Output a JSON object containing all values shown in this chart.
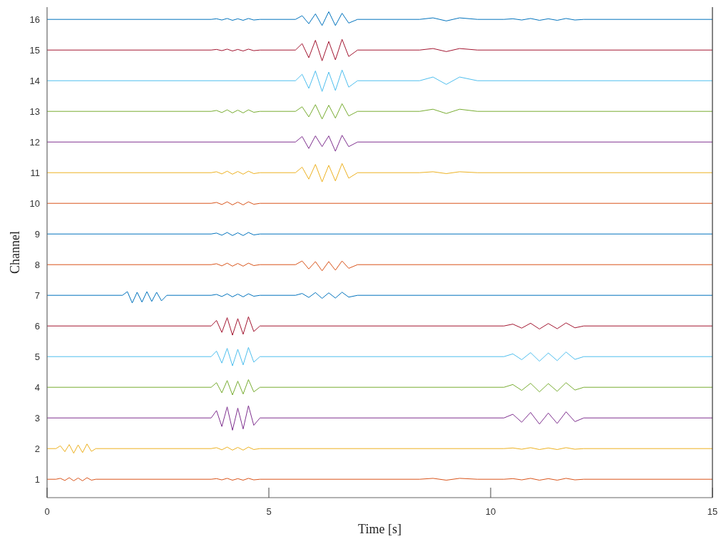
{
  "chart_data": {
    "type": "line",
    "xlabel": "Time [s]",
    "ylabel": "Channel",
    "xlim": [
      0,
      15
    ],
    "xticks": [
      0,
      5,
      10,
      15
    ],
    "ylim": [
      0.4,
      16.4
    ],
    "yticks": [
      1,
      2,
      3,
      4,
      5,
      6,
      7,
      8,
      9,
      10,
      11,
      12,
      13,
      14,
      15,
      16
    ],
    "series": [
      {
        "color": "#d95319",
        "x": [
          0,
          0.2,
          0.3,
          0.4,
          0.5,
          0.6,
          0.7,
          0.8,
          0.9,
          1,
          1.1,
          3.7,
          3.82,
          3.94,
          4.06,
          4.18,
          4.3,
          4.42,
          4.54,
          4.66,
          4.8,
          8.4,
          8.7,
          9,
          9.3,
          9.7,
          10.3,
          10.5,
          10.7,
          10.9,
          11.1,
          11.3,
          11.5,
          11.7,
          11.9,
          12.1,
          15
        ],
        "values": [
          1,
          1,
          1.03,
          0.96,
          1.05,
          0.95,
          1.04,
          0.95,
          1.05,
          0.97,
          1,
          1,
          1.02,
          0.98,
          1.03,
          0.97,
          1.02,
          0.97,
          1.03,
          0.98,
          1,
          1,
          1.03,
          0.97,
          1.03,
          1,
          1,
          1.02,
          0.98,
          1.03,
          0.97,
          1.02,
          0.97,
          1.03,
          0.98,
          1,
          1
        ]
      },
      {
        "color": "#edb120",
        "x": [
          0,
          0.2,
          0.3,
          0.4,
          0.5,
          0.6,
          0.7,
          0.8,
          0.9,
          1,
          1.1,
          3.7,
          3.82,
          3.94,
          4.06,
          4.18,
          4.3,
          4.42,
          4.54,
          4.66,
          4.8,
          10.3,
          10.5,
          10.7,
          10.9,
          11.1,
          11.3,
          11.5,
          11.7,
          11.9,
          12.1,
          15
        ],
        "values": [
          2,
          2,
          2.09,
          1.9,
          2.13,
          1.85,
          2.12,
          1.87,
          2.15,
          1.91,
          2,
          2,
          2.03,
          1.96,
          2.05,
          1.95,
          2.04,
          1.95,
          2.05,
          1.97,
          2,
          2,
          2.02,
          1.98,
          2.03,
          1.97,
          2.02,
          1.97,
          2.03,
          1.98,
          2,
          2
        ]
      },
      {
        "color": "#7e2f8e",
        "x": [
          0,
          3.7,
          3.82,
          3.94,
          4.06,
          4.18,
          4.3,
          4.42,
          4.54,
          4.66,
          4.8,
          10.3,
          10.5,
          10.7,
          10.9,
          11.1,
          11.3,
          11.5,
          11.7,
          11.9,
          12.1,
          15
        ],
        "values": [
          3,
          3,
          3.24,
          2.72,
          3.36,
          2.6,
          3.32,
          2.64,
          3.4,
          2.76,
          3,
          3,
          3.12,
          2.86,
          3.18,
          2.8,
          3.16,
          2.82,
          3.2,
          2.88,
          3,
          3
        ]
      },
      {
        "color": "#77ac30",
        "x": [
          0,
          3.7,
          3.82,
          3.94,
          4.06,
          4.18,
          4.3,
          4.42,
          4.54,
          4.66,
          4.8,
          10.3,
          10.5,
          10.7,
          10.9,
          11.1,
          11.3,
          11.5,
          11.7,
          11.9,
          12.1,
          15
        ],
        "values": [
          4,
          4,
          4.15,
          3.82,
          4.22,
          3.75,
          4.2,
          3.78,
          4.25,
          3.85,
          4,
          4,
          4.09,
          3.9,
          4.13,
          3.85,
          4.12,
          3.87,
          4.15,
          3.91,
          4,
          4
        ]
      },
      {
        "color": "#4dbeee",
        "x": [
          0,
          3.7,
          3.82,
          3.94,
          4.06,
          4.18,
          4.3,
          4.42,
          4.54,
          4.66,
          4.8,
          10.3,
          10.5,
          10.7,
          10.9,
          11.1,
          11.3,
          11.5,
          11.7,
          11.9,
          12.1,
          15
        ],
        "values": [
          5,
          5,
          5.18,
          4.79,
          5.27,
          4.7,
          5.24,
          4.73,
          5.3,
          4.82,
          5,
          5,
          5.09,
          4.9,
          5.13,
          4.85,
          5.12,
          4.87,
          5.15,
          4.91,
          5,
          5
        ]
      },
      {
        "color": "#a2142f",
        "x": [
          0,
          3.7,
          3.82,
          3.94,
          4.06,
          4.18,
          4.3,
          4.42,
          4.54,
          4.66,
          4.8,
          10.3,
          10.5,
          10.7,
          10.9,
          11.1,
          11.3,
          11.5,
          11.7,
          11.9,
          12.1,
          15
        ],
        "values": [
          6,
          6,
          6.18,
          5.79,
          6.27,
          5.7,
          6.24,
          5.73,
          6.3,
          5.82,
          6,
          6,
          6.06,
          5.93,
          6.09,
          5.9,
          6.08,
          5.91,
          6.1,
          5.94,
          6,
          6
        ]
      },
      {
        "color": "#0072bd",
        "x": [
          0,
          1.7,
          1.81,
          1.92,
          2.03,
          2.14,
          2.25,
          2.36,
          2.47,
          2.58,
          2.7,
          3.7,
          3.82,
          3.94,
          4.06,
          4.18,
          4.3,
          4.42,
          4.54,
          4.66,
          4.8,
          5.6,
          5.75,
          5.9,
          6.05,
          6.2,
          6.35,
          6.5,
          6.65,
          6.8,
          7,
          15
        ],
        "values": [
          7,
          7,
          7.12,
          6.75,
          7.1,
          6.78,
          7.12,
          6.8,
          7.1,
          6.82,
          7,
          7,
          7.03,
          6.96,
          7.05,
          6.95,
          7.04,
          6.95,
          7.05,
          6.97,
          7,
          7,
          7.06,
          6.93,
          7.09,
          6.9,
          7.08,
          6.91,
          7.1,
          6.94,
          7,
          7
        ]
      },
      {
        "color": "#d95319",
        "x": [
          0,
          3.7,
          3.82,
          3.94,
          4.06,
          4.18,
          4.3,
          4.42,
          4.54,
          4.66,
          4.8,
          5.6,
          5.75,
          5.9,
          6.05,
          6.2,
          6.35,
          6.5,
          6.65,
          6.8,
          7,
          15
        ],
        "values": [
          8,
          8,
          8.03,
          7.96,
          8.05,
          7.95,
          8.04,
          7.95,
          8.05,
          7.97,
          8,
          8,
          8.12,
          7.86,
          8.1,
          7.8,
          8.1,
          7.82,
          8.12,
          7.88,
          8,
          8
        ]
      },
      {
        "color": "#0072bd",
        "x": [
          0,
          3.7,
          3.82,
          3.94,
          4.06,
          4.18,
          4.3,
          4.42,
          4.54,
          4.66,
          4.8,
          15
        ],
        "values": [
          9,
          9,
          9.03,
          8.96,
          9.05,
          8.95,
          9.04,
          8.95,
          9.05,
          8.97,
          9,
          9
        ]
      },
      {
        "color": "#d95319",
        "x": [
          0,
          3.7,
          3.82,
          3.94,
          4.06,
          4.18,
          4.3,
          4.42,
          4.54,
          4.66,
          4.8,
          15
        ],
        "values": [
          10,
          10,
          10.03,
          9.96,
          10.05,
          9.95,
          10.04,
          9.95,
          10.05,
          9.97,
          10,
          10
        ]
      },
      {
        "color": "#edb120",
        "x": [
          0,
          3.7,
          3.82,
          3.94,
          4.06,
          4.18,
          4.3,
          4.42,
          4.54,
          4.66,
          4.8,
          5.6,
          5.75,
          5.9,
          6.05,
          6.2,
          6.35,
          6.5,
          6.65,
          6.8,
          7,
          8.4,
          8.7,
          9,
          9.3,
          9.7,
          15
        ],
        "values": [
          11,
          11,
          11.03,
          10.96,
          11.05,
          10.95,
          11.04,
          10.95,
          11.05,
          10.97,
          11,
          11,
          11.18,
          10.79,
          11.27,
          10.7,
          11.24,
          10.73,
          11.3,
          10.82,
          11,
          11,
          11.03,
          10.97,
          11.03,
          11,
          11
        ]
      },
      {
        "color": "#7e2f8e",
        "x": [
          0,
          5.6,
          5.75,
          5.9,
          6.05,
          6.2,
          6.35,
          6.5,
          6.65,
          6.8,
          7,
          15
        ],
        "values": [
          12,
          12,
          12.18,
          11.79,
          12.2,
          11.85,
          12.2,
          11.7,
          12.22,
          11.85,
          12,
          12
        ]
      },
      {
        "color": "#77ac30",
        "x": [
          0,
          3.7,
          3.82,
          3.94,
          4.06,
          4.18,
          4.3,
          4.42,
          4.54,
          4.66,
          4.8,
          5.6,
          5.75,
          5.9,
          6.05,
          6.2,
          6.35,
          6.5,
          6.65,
          6.8,
          7,
          8.4,
          8.7,
          9,
          9.3,
          9.7,
          15
        ],
        "values": [
          13,
          13,
          13.03,
          12.96,
          13.05,
          12.95,
          13.04,
          12.95,
          13.05,
          12.97,
          13,
          13,
          13.15,
          12.82,
          13.22,
          12.75,
          13.2,
          12.78,
          13.25,
          12.85,
          13,
          13,
          13.07,
          12.93,
          13.07,
          13,
          13
        ]
      },
      {
        "color": "#4dbeee",
        "x": [
          0,
          5.6,
          5.75,
          5.9,
          6.05,
          6.2,
          6.35,
          6.5,
          6.65,
          6.8,
          7,
          8.4,
          8.7,
          9,
          9.3,
          9.7,
          15
        ],
        "values": [
          14,
          14,
          14.21,
          13.75,
          14.32,
          13.65,
          14.28,
          13.68,
          14.35,
          13.79,
          14,
          14,
          14.12,
          13.88,
          14.12,
          14,
          14
        ]
      },
      {
        "color": "#a2142f",
        "x": [
          0,
          3.7,
          3.82,
          3.94,
          4.06,
          4.18,
          4.3,
          4.42,
          4.54,
          4.66,
          4.8,
          5.6,
          5.75,
          5.9,
          6.05,
          6.2,
          6.35,
          6.5,
          6.65,
          6.8,
          7,
          8.4,
          8.7,
          9,
          9.3,
          9.7,
          15
        ],
        "values": [
          15,
          15,
          15.02,
          14.98,
          15.03,
          14.97,
          15.02,
          14.97,
          15.03,
          14.98,
          15,
          15,
          15.21,
          14.75,
          15.32,
          14.65,
          15.28,
          14.68,
          15.35,
          14.79,
          15,
          15,
          15.05,
          14.95,
          15.05,
          15,
          15
        ]
      },
      {
        "color": "#0072bd",
        "x": [
          0,
          3.7,
          3.82,
          3.94,
          4.06,
          4.18,
          4.3,
          4.42,
          4.54,
          4.66,
          4.8,
          5.6,
          5.75,
          5.9,
          6.05,
          6.2,
          6.35,
          6.5,
          6.65,
          6.8,
          7,
          8.4,
          8.7,
          9,
          9.3,
          9.7,
          10.3,
          10.5,
          10.7,
          10.9,
          11.1,
          11.3,
          11.5,
          11.7,
          11.9,
          12.1,
          15
        ],
        "values": [
          16,
          16,
          16.02,
          15.98,
          16.03,
          15.97,
          16.02,
          15.97,
          16.03,
          15.98,
          16,
          16,
          16.12,
          15.86,
          16.18,
          15.8,
          16.25,
          15.8,
          16.2,
          15.88,
          16,
          16,
          16.05,
          15.95,
          16.05,
          16,
          16,
          16.02,
          15.98,
          16.03,
          15.97,
          16.02,
          15.97,
          16.03,
          15.98,
          16,
          16
        ]
      }
    ]
  }
}
